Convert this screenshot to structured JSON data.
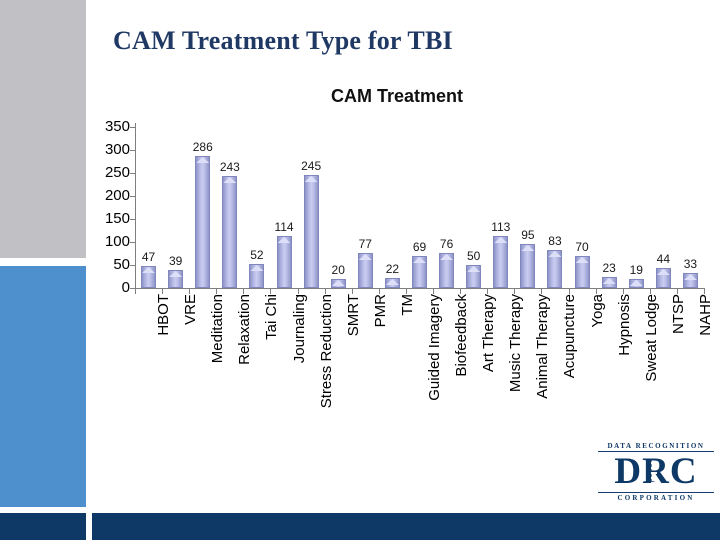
{
  "slide": {
    "title": "CAM Treatment Type for TBI"
  },
  "colors": {
    "sidebar_gray": "#c1c1c5",
    "sidebar_blue": "#4e90ce",
    "footer_navy": "#0e3866",
    "title_navy": "#1f3864",
    "bar_fill": "#a6abdd",
    "bar_edge": "#8087bd",
    "bar_highlight": "#dcdff7",
    "axis_gray": "#7f7f7f"
  },
  "chart_data": {
    "type": "bar",
    "title": "CAM Treatment",
    "categories": [
      "HBOT",
      "VRE",
      "Meditation",
      "Relaxation",
      "Tai Chi",
      "Journaling",
      "Stress Reduction",
      "SMRT",
      "PMR",
      "TM",
      "Guided Imagery",
      "Biofeedback",
      "Art Therapy",
      "Music Therapy",
      "Animal Therapy",
      "Acupuncture",
      "Yoga",
      "Hypnosis",
      "Sweat Lodge",
      "NTSP",
      "NAHP"
    ],
    "values": [
      47,
      39,
      286,
      243,
      52,
      114,
      245,
      20,
      77,
      22,
      69,
      76,
      50,
      113,
      95,
      83,
      70,
      23,
      19,
      44,
      33
    ],
    "xlabel": "",
    "ylabel": "",
    "ylim": [
      0,
      350
    ],
    "yticks": [
      0,
      50,
      100,
      150,
      200,
      250,
      300,
      350
    ],
    "grid": false,
    "legend": false,
    "bar_labels": true,
    "category_label_rotation": 90
  },
  "logo": {
    "top_text": "DATA RECOGNITION",
    "main_text": "DRC",
    "bottom_text": "CORPORATION"
  }
}
